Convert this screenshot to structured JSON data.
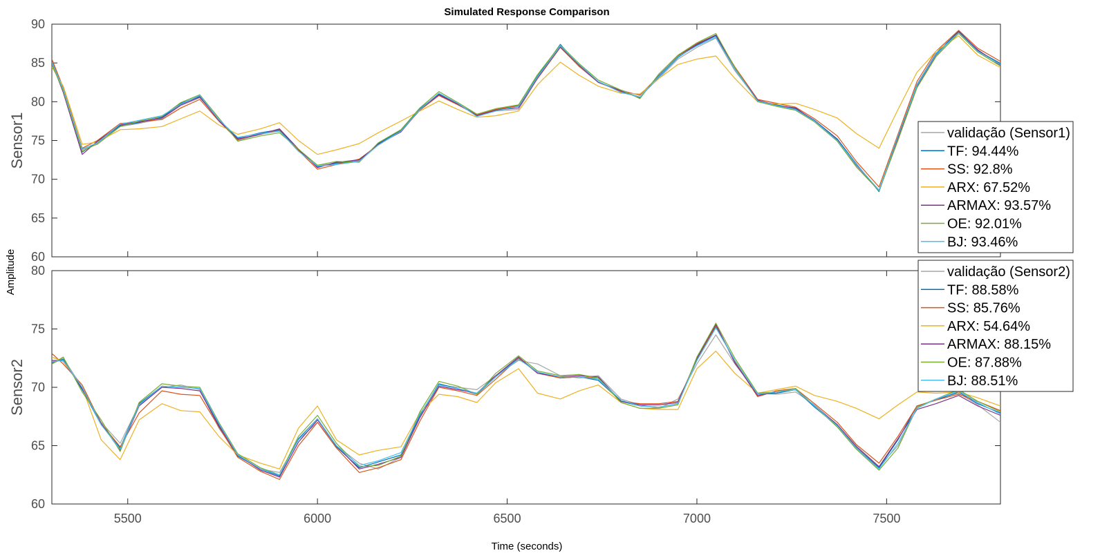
{
  "figure": {
    "title": "Simulated Response Comparison",
    "xlabel": "Time (seconds)",
    "ylabel": "Amplitude"
  },
  "chart_data": [
    {
      "type": "line",
      "ylabel": "Sensor1",
      "xlim": [
        5300,
        7800
      ],
      "ylim": [
        60,
        90
      ],
      "xticks": [
        5500,
        6000,
        6500,
        7000,
        7500
      ],
      "yticks": [
        60,
        65,
        70,
        75,
        80,
        85,
        90
      ],
      "legend_position": "right",
      "x": [
        5300,
        5330,
        5380,
        5420,
        5480,
        5530,
        5590,
        5640,
        5690,
        5740,
        5790,
        5850,
        5900,
        5950,
        6000,
        6050,
        6110,
        6160,
        6220,
        6270,
        6320,
        6370,
        6420,
        6470,
        6530,
        6580,
        6640,
        6690,
        6740,
        6800,
        6850,
        6900,
        6950,
        7000,
        7050,
        7100,
        7160,
        7210,
        7260,
        7310,
        7370,
        7420,
        7480,
        7530,
        7580,
        7630,
        7690,
        7740,
        7800
      ],
      "series": [
        {
          "name": "validação (Sensor1)",
          "color": "#a6a6a6",
          "values": [
            85.0,
            81.5,
            73.8,
            74.5,
            76.8,
            77.2,
            77.8,
            79.5,
            80.5,
            77.8,
            75.0,
            75.8,
            76.2,
            73.8,
            71.8,
            72.0,
            72.4,
            74.5,
            76.2,
            79.0,
            80.8,
            79.8,
            78.2,
            78.8,
            79.0,
            83.0,
            87.0,
            84.5,
            82.5,
            81.5,
            80.8,
            83.0,
            85.5,
            87.0,
            88.2,
            84.0,
            80.2,
            79.5,
            79.0,
            77.5,
            75.0,
            72.0,
            68.5,
            75.0,
            82.0,
            86.0,
            89.0,
            86.5,
            85.0
          ]
        },
        {
          "name": "TF: 94.44%",
          "color": "#0072bd",
          "values": [
            85.2,
            81.5,
            73.5,
            74.8,
            76.9,
            77.3,
            78.0,
            79.8,
            80.7,
            77.6,
            75.3,
            76.0,
            76.4,
            73.8,
            71.6,
            72.1,
            72.3,
            74.6,
            76.3,
            79.1,
            81.0,
            79.7,
            78.3,
            78.9,
            79.4,
            83.3,
            87.4,
            84.6,
            82.6,
            81.3,
            80.6,
            83.2,
            85.7,
            87.3,
            88.5,
            84.2,
            80.1,
            79.6,
            79.1,
            77.6,
            75.2,
            72.0,
            68.4,
            75.5,
            82.2,
            86.2,
            89.1,
            86.6,
            84.9
          ]
        },
        {
          "name": "SS: 92.8%",
          "color": "#d95319",
          "values": [
            85.5,
            81.8,
            74.0,
            75.0,
            77.2,
            77.4,
            77.7,
            79.2,
            80.3,
            77.5,
            75.1,
            75.9,
            76.3,
            73.7,
            71.3,
            71.9,
            72.6,
            74.4,
            76.2,
            78.9,
            80.8,
            79.6,
            78.3,
            79.0,
            79.5,
            83.0,
            87.0,
            84.6,
            82.5,
            81.3,
            80.9,
            83.3,
            85.9,
            87.5,
            88.6,
            84.5,
            80.3,
            79.8,
            79.3,
            77.8,
            75.6,
            72.3,
            69.0,
            75.8,
            82.6,
            86.5,
            89.2,
            86.9,
            85.2
          ]
        },
        {
          "name": "ARX: 67.52%",
          "color": "#edb120",
          "values": [
            84.5,
            82.0,
            74.5,
            74.8,
            76.4,
            76.5,
            76.8,
            77.8,
            78.8,
            77.0,
            75.8,
            76.5,
            77.3,
            75.0,
            73.2,
            73.8,
            74.6,
            76.0,
            77.5,
            78.8,
            80.1,
            79.0,
            78.0,
            78.2,
            78.8,
            82.2,
            85.1,
            83.4,
            82.0,
            81.1,
            81.0,
            83.0,
            84.8,
            85.5,
            85.9,
            83.0,
            80.0,
            79.7,
            79.8,
            79.0,
            77.9,
            75.9,
            74.0,
            79.0,
            83.8,
            86.5,
            88.5,
            86.0,
            84.4
          ]
        },
        {
          "name": "ARMAX: 93.57%",
          "color": "#7e2f8e",
          "values": [
            85.0,
            81.2,
            73.2,
            74.9,
            77.0,
            77.4,
            77.9,
            79.6,
            80.6,
            77.6,
            75.2,
            75.8,
            76.5,
            73.9,
            71.5,
            72.2,
            72.5,
            74.5,
            76.1,
            79.0,
            80.9,
            79.7,
            78.2,
            78.9,
            79.2,
            83.1,
            87.1,
            84.7,
            82.5,
            81.4,
            80.5,
            83.4,
            85.8,
            87.4,
            88.6,
            84.3,
            80.2,
            79.5,
            79.2,
            77.5,
            75.1,
            71.8,
            68.6,
            75.3,
            82.0,
            86.0,
            89.0,
            86.7,
            84.7
          ]
        },
        {
          "name": "OE: 92.01%",
          "color": "#77ac30",
          "values": [
            84.8,
            81.4,
            73.6,
            74.6,
            76.8,
            77.5,
            78.1,
            79.9,
            80.9,
            77.9,
            74.9,
            75.6,
            76.0,
            73.9,
            71.8,
            72.3,
            72.2,
            74.7,
            76.4,
            79.2,
            81.3,
            79.9,
            78.4,
            79.1,
            79.6,
            83.5,
            87.3,
            84.9,
            82.8,
            81.5,
            80.4,
            83.6,
            86.0,
            87.6,
            88.8,
            84.4,
            80.0,
            79.4,
            78.9,
            77.4,
            74.9,
            71.6,
            68.5,
            75.1,
            81.8,
            85.8,
            88.8,
            86.4,
            84.6
          ]
        },
        {
          "name": "BJ: 93.46%",
          "color": "#4dbeee",
          "values": [
            85.1,
            81.6,
            73.9,
            74.7,
            77.1,
            77.6,
            78.2,
            79.7,
            80.8,
            77.7,
            75.4,
            75.9,
            76.2,
            73.6,
            71.7,
            71.9,
            72.3,
            74.4,
            76.2,
            79.0,
            81.1,
            79.8,
            78.1,
            78.8,
            79.4,
            83.2,
            87.2,
            84.8,
            82.6,
            81.2,
            80.6,
            83.3,
            85.8,
            87.2,
            88.3,
            84.2,
            80.1,
            79.5,
            79.0,
            77.5,
            75.0,
            71.9,
            68.6,
            75.6,
            82.1,
            86.1,
            88.9,
            86.5,
            84.8
          ]
        }
      ]
    },
    {
      "type": "line",
      "ylabel": "Sensor2",
      "xlim": [
        5300,
        7800
      ],
      "ylim": [
        60,
        80
      ],
      "xticks": [
        5500,
        6000,
        6500,
        7000,
        7500
      ],
      "yticks": [
        60,
        65,
        70,
        75,
        80
      ],
      "legend_position": "right",
      "x": [
        5300,
        5330,
        5380,
        5430,
        5480,
        5530,
        5590,
        5640,
        5690,
        5740,
        5790,
        5850,
        5900,
        5950,
        6000,
        6050,
        6110,
        6160,
        6220,
        6270,
        6320,
        6370,
        6420,
        6470,
        6530,
        6580,
        6640,
        6690,
        6740,
        6800,
        6850,
        6900,
        6950,
        7000,
        7050,
        7100,
        7160,
        7210,
        7260,
        7310,
        7370,
        7420,
        7480,
        7530,
        7580,
        7630,
        7690,
        7740,
        7800
      ],
      "series": [
        {
          "name": "validação (Sensor2)",
          "color": "#a6a6a6",
          "values": [
            72.0,
            72.5,
            70.0,
            67.0,
            65.2,
            68.5,
            70.0,
            70.2,
            69.8,
            66.5,
            64.2,
            63.0,
            62.7,
            65.5,
            67.0,
            65.0,
            63.5,
            63.0,
            64.0,
            67.5,
            70.2,
            70.0,
            69.8,
            71.0,
            72.3,
            72.0,
            71.0,
            70.8,
            71.0,
            69.0,
            68.5,
            68.2,
            69.0,
            72.0,
            74.5,
            72.0,
            69.5,
            69.4,
            69.6,
            68.5,
            66.8,
            65.0,
            63.2,
            65.0,
            68.2,
            69.0,
            69.5,
            68.5,
            67.0
          ]
        },
        {
          "name": "TF: 88.58%",
          "color": "#0072bd",
          "values": [
            72.1,
            72.4,
            69.8,
            66.8,
            64.8,
            68.6,
            70.1,
            70.0,
            69.9,
            66.8,
            64.1,
            63.0,
            62.4,
            65.6,
            67.3,
            64.9,
            63.1,
            63.6,
            64.2,
            67.6,
            70.3,
            69.9,
            69.4,
            70.9,
            72.5,
            71.3,
            70.8,
            70.9,
            70.6,
            68.8,
            68.4,
            68.3,
            68.6,
            72.4,
            75.2,
            72.3,
            69.4,
            69.5,
            69.8,
            68.3,
            66.7,
            64.8,
            63.1,
            65.5,
            68.4,
            68.9,
            69.6,
            68.6,
            67.8
          ]
        },
        {
          "name": "SS: 85.76%",
          "color": "#d95319",
          "values": [
            72.9,
            72.0,
            70.2,
            66.9,
            64.9,
            67.8,
            69.7,
            69.4,
            69.3,
            66.6,
            64.0,
            62.8,
            62.1,
            65.0,
            67.0,
            64.8,
            62.7,
            63.1,
            63.8,
            67.1,
            70.0,
            69.7,
            69.3,
            70.7,
            72.5,
            71.2,
            70.8,
            70.9,
            70.8,
            68.8,
            68.6,
            68.6,
            68.8,
            72.3,
            75.3,
            72.2,
            69.2,
            69.7,
            69.9,
            68.6,
            67.0,
            65.1,
            63.5,
            65.8,
            68.4,
            68.9,
            69.4,
            68.8,
            68.0
          ]
        },
        {
          "name": "ARX: 54.64%",
          "color": "#edb120",
          "values": [
            72.6,
            72.2,
            70.0,
            65.5,
            63.8,
            67.2,
            68.6,
            68.0,
            67.9,
            65.8,
            64.2,
            63.5,
            63.0,
            66.5,
            68.4,
            65.5,
            64.2,
            64.6,
            64.9,
            67.8,
            69.4,
            69.2,
            68.7,
            70.4,
            71.6,
            69.5,
            69.0,
            69.7,
            70.2,
            68.7,
            68.2,
            68.1,
            68.1,
            71.6,
            73.1,
            71.2,
            69.5,
            69.8,
            70.1,
            69.3,
            68.8,
            68.2,
            67.3,
            68.5,
            69.6,
            69.5,
            69.6,
            69.1,
            68.4
          ]
        },
        {
          "name": "ARMAX: 88.15%",
          "color": "#7e2f8e",
          "values": [
            72.3,
            72.3,
            69.9,
            66.9,
            64.6,
            68.4,
            70.0,
            69.9,
            69.7,
            66.7,
            64.2,
            62.9,
            62.3,
            65.3,
            67.2,
            65.0,
            63.0,
            63.4,
            64.0,
            67.4,
            70.1,
            69.8,
            69.5,
            71.0,
            72.6,
            71.2,
            70.9,
            71.0,
            70.9,
            68.8,
            68.5,
            68.5,
            68.7,
            72.5,
            75.4,
            72.1,
            69.3,
            69.6,
            69.8,
            68.4,
            66.8,
            64.9,
            63.2,
            65.6,
            68.1,
            68.6,
            69.3,
            68.4,
            67.6
          ]
        },
        {
          "name": "OE: 87.88%",
          "color": "#77ac30",
          "values": [
            72.0,
            72.6,
            69.6,
            67.2,
            64.5,
            68.7,
            70.3,
            70.1,
            70.0,
            67.0,
            64.3,
            63.1,
            62.5,
            65.8,
            67.6,
            65.2,
            63.2,
            63.3,
            64.1,
            67.9,
            70.5,
            70.1,
            69.4,
            71.2,
            72.7,
            71.4,
            71.0,
            71.1,
            70.8,
            68.7,
            68.2,
            68.2,
            68.5,
            72.6,
            75.5,
            72.5,
            69.5,
            69.6,
            69.9,
            68.4,
            66.6,
            64.7,
            62.9,
            64.8,
            68.3,
            69.0,
            69.8,
            68.8,
            67.9
          ]
        },
        {
          "name": "BJ: 88.51%",
          "color": "#4dbeee",
          "values": [
            72.2,
            72.3,
            70.0,
            66.8,
            64.7,
            68.5,
            70.1,
            70.0,
            69.9,
            66.9,
            64.2,
            63.0,
            62.5,
            65.5,
            67.3,
            65.0,
            63.3,
            63.7,
            64.4,
            67.7,
            70.2,
            69.9,
            69.5,
            70.9,
            72.4,
            71.3,
            70.9,
            70.9,
            70.7,
            68.9,
            68.4,
            68.3,
            68.6,
            72.3,
            75.1,
            72.3,
            69.4,
            69.6,
            69.8,
            68.4,
            66.7,
            64.8,
            63.0,
            65.2,
            68.2,
            69.0,
            69.7,
            68.7,
            67.7
          ]
        }
      ]
    }
  ]
}
